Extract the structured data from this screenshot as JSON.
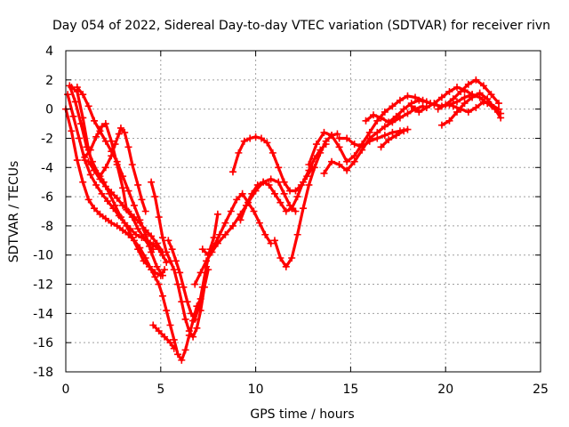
{
  "chart_data": {
    "type": "scatter",
    "title": "Day 054 of 2022, Sidereal Day-to-day VTEC variation (SDTVAR) for receiver rivn",
    "xlabel": "GPS time / hours",
    "ylabel": "SDTVAR / TECUs",
    "xlim": [
      0,
      25
    ],
    "ylim": [
      -18,
      4
    ],
    "xticks": [
      0,
      5,
      10,
      15,
      20,
      25
    ],
    "yticks": [
      -18,
      -16,
      -14,
      -12,
      -10,
      -8,
      -6,
      -4,
      -2,
      0,
      2,
      4
    ],
    "grid": true,
    "marker": "+",
    "color": "#ff0000",
    "series": [
      {
        "x": [
          0.0,
          0.3,
          0.6,
          0.9,
          1.2,
          1.5,
          1.8,
          2.1,
          2.4,
          2.7,
          3.0,
          3.3,
          3.6,
          3.9,
          4.2,
          4.5,
          4.7,
          4.9,
          5.1,
          5.3,
          5.5,
          5.7,
          5.9,
          6.1,
          6.3,
          6.5,
          6.7,
          6.9,
          7.1
        ],
        "y": [
          0.0,
          -1.5,
          -3.5,
          -5.0,
          -6.2,
          -6.8,
          -7.2,
          -7.5,
          -7.8,
          -8.0,
          -8.3,
          -8.6,
          -9.0,
          -9.5,
          -10.2,
          -11.0,
          -11.5,
          -12.0,
          -12.8,
          -13.8,
          -14.8,
          -15.8,
          -16.8,
          -17.2,
          -16.5,
          -15.5,
          -14.5,
          -13.5,
          -13.0
        ]
      },
      {
        "x": [
          0.1,
          0.4,
          0.7,
          1.0,
          1.3,
          1.6,
          1.9,
          2.2,
          2.5,
          2.8,
          3.1,
          3.4,
          3.7,
          4.0,
          4.3,
          4.6,
          4.9,
          5.1,
          5.3
        ],
        "y": [
          1.0,
          -0.5,
          -2.0,
          -3.5,
          -4.5,
          -5.2,
          -5.8,
          -6.3,
          -6.8,
          -7.3,
          -7.8,
          -8.2,
          -8.6,
          -8.8,
          -9.0,
          -9.3,
          -9.6,
          -10.0,
          -10.5
        ]
      },
      {
        "x": [
          0.2,
          0.5,
          0.8,
          1.1,
          1.4,
          1.7,
          2.0,
          2.3,
          2.6,
          2.9,
          3.2,
          3.5,
          3.8,
          4.1,
          4.4,
          4.7,
          5.0,
          5.2
        ],
        "y": [
          1.6,
          0.5,
          -1.0,
          -2.6,
          -3.6,
          -4.4,
          -5.0,
          -5.8,
          -6.6,
          -7.4,
          -8.0,
          -8.8,
          -9.6,
          -10.4,
          -10.8,
          -11.2,
          -11.4,
          -11.0
        ]
      },
      {
        "x": [
          0.3,
          0.6,
          0.9,
          1.2,
          1.5,
          1.8,
          2.1,
          2.4,
          2.7,
          3.0,
          3.3,
          3.6,
          3.9,
          4.2,
          4.5,
          4.8,
          5.1
        ],
        "y": [
          1.5,
          1.2,
          -0.6,
          -2.8,
          -4.2,
          -4.8,
          -5.3,
          -5.7,
          -6.1,
          -6.6,
          -7.0,
          -7.4,
          -7.8,
          -8.3,
          -8.7,
          -9.2,
          -9.8
        ]
      },
      {
        "x": [
          0.6,
          0.9,
          1.2,
          1.5,
          1.8,
          2.1,
          2.4,
          2.7,
          3.0,
          3.3,
          3.6,
          3.9,
          4.2,
          4.5,
          4.8,
          5.1
        ],
        "y": [
          1.5,
          1.0,
          0.2,
          -0.8,
          -1.5,
          -2.2,
          -2.9,
          -3.6,
          -4.6,
          -5.6,
          -6.6,
          -7.6,
          -8.6,
          -9.8,
          -10.8,
          -11.4
        ]
      },
      {
        "x": [
          1.0,
          1.3,
          1.6,
          1.9,
          2.1,
          2.4,
          2.7,
          3.0,
          3.2,
          3.5,
          3.8,
          4.1,
          4.4,
          4.6
        ],
        "y": [
          -3.3,
          -2.8,
          -1.9,
          -1.2,
          -1.0,
          -2.2,
          -3.8,
          -5.4,
          -6.9,
          -7.4,
          -8.2,
          -8.8,
          -9.4,
          -9.6
        ]
      },
      {
        "x": [
          1.2,
          1.5,
          1.8,
          2.1,
          2.4,
          2.6,
          2.8,
          2.9,
          3.1,
          3.3,
          3.5,
          3.8,
          4.0,
          4.2
        ],
        "y": [
          -3.6,
          -4.2,
          -4.6,
          -4.0,
          -3.2,
          -2.4,
          -1.7,
          -1.3,
          -1.6,
          -2.6,
          -3.8,
          -5.2,
          -6.2,
          -7.0
        ]
      },
      {
        "x": [
          4.6,
          4.9,
          5.2,
          5.5,
          5.7
        ],
        "y": [
          -14.8,
          -15.2,
          -15.6,
          -16.0,
          -16.4
        ]
      },
      {
        "x": [
          4.5,
          4.7,
          4.9,
          5.1,
          5.3,
          5.5,
          5.7,
          5.9,
          6.1,
          6.3,
          6.5,
          6.7,
          6.9,
          7.1,
          7.3,
          7.5
        ],
        "y": [
          -5.0,
          -6.0,
          -7.4,
          -8.8,
          -9.8,
          -10.4,
          -11.0,
          -12.0,
          -13.2,
          -14.4,
          -15.2,
          -15.6,
          -15.0,
          -13.8,
          -12.2,
          -11.0
        ]
      },
      {
        "x": [
          5.4,
          5.6,
          5.8,
          6.0,
          6.2,
          6.4,
          6.6,
          6.8,
          7.0,
          7.2,
          7.4,
          7.6,
          7.8,
          8.0
        ],
        "y": [
          -9.0,
          -9.6,
          -10.4,
          -11.2,
          -12.2,
          -13.2,
          -14.0,
          -14.4,
          -13.6,
          -12.2,
          -10.8,
          -9.6,
          -8.8,
          -7.2
        ]
      },
      {
        "x": [
          6.8,
          7.1,
          7.4,
          7.7,
          8.0,
          8.4,
          8.8,
          9.2,
          9.6,
          10.0,
          10.4,
          10.8,
          11.2,
          11.5,
          11.8,
          12.1
        ],
        "y": [
          -12.0,
          -11.2,
          -10.4,
          -9.8,
          -9.2,
          -8.6,
          -8.0,
          -7.2,
          -6.4,
          -5.6,
          -5.0,
          -4.8,
          -5.0,
          -5.8,
          -6.6,
          -7.0
        ]
      },
      {
        "x": [
          7.2,
          7.5,
          7.8,
          8.1,
          8.4,
          8.7,
          9.0,
          9.3,
          9.6,
          9.9,
          10.2,
          10.5,
          10.8
        ],
        "y": [
          -9.6,
          -10.0,
          -9.4,
          -8.6,
          -7.8,
          -7.0,
          -6.2,
          -5.8,
          -6.4,
          -7.0,
          -7.8,
          -8.6,
          -9.2
        ]
      },
      {
        "x": [
          8.8,
          9.1,
          9.4,
          9.7,
          10.0,
          10.3,
          10.6,
          10.9,
          11.2,
          11.5,
          11.8,
          12.1,
          12.4,
          12.7,
          13.0
        ],
        "y": [
          -4.3,
          -3.0,
          -2.2,
          -2.0,
          -1.9,
          -2.0,
          -2.3,
          -3.0,
          -4.0,
          -5.0,
          -5.6,
          -5.6,
          -5.2,
          -4.6,
          -4.0
        ]
      },
      {
        "x": [
          9.2,
          9.5,
          9.8,
          10.1,
          10.4,
          10.7,
          11.0,
          11.3,
          11.6,
          11.9,
          12.2,
          12.5,
          12.8,
          13.1,
          13.4,
          13.7
        ],
        "y": [
          -7.6,
          -6.6,
          -5.8,
          -5.2,
          -5.0,
          -5.2,
          -5.8,
          -6.4,
          -7.0,
          -6.8,
          -6.0,
          -5.0,
          -4.2,
          -3.4,
          -2.8,
          -2.4
        ]
      },
      {
        "x": [
          11.0,
          11.3,
          11.6,
          11.9,
          12.2,
          12.5,
          12.8,
          13.1,
          13.4,
          13.7,
          14.0,
          14.3
        ],
        "y": [
          -9.0,
          -10.2,
          -10.8,
          -10.2,
          -8.6,
          -6.8,
          -5.2,
          -4.0,
          -3.0,
          -2.2,
          -1.8,
          -1.7
        ]
      },
      {
        "x": [
          12.8,
          13.2,
          13.6,
          14.0,
          14.4,
          14.8,
          15.2,
          15.6,
          16.0,
          16.4,
          16.8,
          17.2,
          17.6,
          18.0,
          18.4,
          18.8,
          19.2
        ],
        "y": [
          -3.8,
          -2.4,
          -1.6,
          -1.8,
          -2.6,
          -3.6,
          -3.2,
          -2.4,
          -1.6,
          -0.8,
          -0.2,
          0.2,
          0.6,
          0.9,
          0.8,
          0.6,
          0.4
        ]
      },
      {
        "x": [
          13.6,
          14.0,
          14.4,
          14.8,
          15.2,
          15.6,
          16.0,
          16.4,
          16.8,
          17.2,
          17.6,
          18.0,
          18.4,
          18.8
        ],
        "y": [
          -4.4,
          -3.6,
          -3.8,
          -4.2,
          -3.6,
          -2.8,
          -2.0,
          -1.6,
          -1.2,
          -0.9,
          -0.6,
          -0.3,
          0.0,
          0.2
        ]
      },
      {
        "x": [
          14.4,
          14.8,
          15.2,
          15.6,
          16.0,
          16.4,
          16.8,
          17.2,
          17.6,
          18.0
        ],
        "y": [
          -2.0,
          -2.0,
          -2.4,
          -2.6,
          -2.2,
          -2.0,
          -1.8,
          -1.6,
          -1.5,
          -1.4
        ]
      },
      {
        "x": [
          15.8,
          16.2,
          16.6,
          17.0,
          17.4,
          17.8,
          18.2,
          18.6,
          19.0,
          19.4,
          19.8,
          20.2,
          20.6,
          21.0,
          21.4
        ],
        "y": [
          -0.8,
          -0.4,
          -0.6,
          -0.9,
          -0.5,
          0.0,
          0.4,
          0.6,
          0.5,
          0.3,
          0.2,
          0.3,
          0.5,
          0.8,
          1.0
        ]
      },
      {
        "x": [
          16.6,
          17.0,
          17.4,
          17.8
        ],
        "y": [
          -2.6,
          -2.1,
          -1.8,
          -1.5
        ]
      },
      {
        "x": [
          18.2,
          18.6,
          19.0,
          19.4,
          19.8,
          20.2,
          20.6,
          21.0,
          21.4,
          21.8,
          22.2,
          22.6,
          22.9
        ],
        "y": [
          0.2,
          -0.2,
          0.1,
          0.4,
          0.8,
          1.2,
          1.5,
          1.3,
          1.0,
          0.8,
          0.4,
          0.0,
          -0.3
        ]
      },
      {
        "x": [
          19.6,
          20.0,
          20.4,
          20.8,
          21.2,
          21.6,
          22.0,
          22.4,
          22.8
        ],
        "y": [
          0.0,
          0.3,
          0.7,
          1.2,
          1.7,
          2.0,
          1.6,
          1.0,
          0.4
        ]
      },
      {
        "x": [
          19.8,
          20.2,
          20.6,
          21.0,
          21.4,
          21.8,
          22.2,
          22.6,
          22.9
        ],
        "y": [
          -1.1,
          -0.8,
          -0.2,
          0.4,
          0.8,
          1.1,
          0.7,
          0.0,
          -0.6
        ]
      },
      {
        "x": [
          20.4,
          20.8,
          21.2,
          21.6,
          22.0,
          22.4,
          22.8
        ],
        "y": [
          0.2,
          0.0,
          -0.2,
          0.1,
          0.5,
          0.3,
          0.0
        ]
      }
    ]
  }
}
